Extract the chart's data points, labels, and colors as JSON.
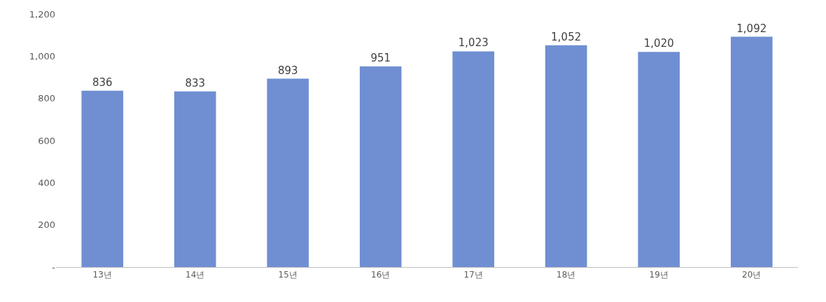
{
  "chart_data": {
    "type": "bar",
    "categories": [
      "13년",
      "14년",
      "15년",
      "16년",
      "17년",
      "18년",
      "19년",
      "20년"
    ],
    "values": [
      836,
      833,
      893,
      951,
      1023,
      1052,
      1020,
      1092
    ],
    "value_labels": [
      "836",
      "833",
      "893",
      "951",
      "1,023",
      "1,052",
      "1,020",
      "1,092"
    ],
    "color": "#6f8fd2",
    "ylim": [
      0,
      1200
    ],
    "yticks": [
      {
        "value": 0,
        "label": "-"
      },
      {
        "value": 200,
        "label": "200"
      },
      {
        "value": 400,
        "label": "400"
      },
      {
        "value": 600,
        "label": "600"
      },
      {
        "value": 800,
        "label": "800"
      },
      {
        "value": 1000,
        "label": "1,000"
      },
      {
        "value": 1200,
        "label": "1,200"
      }
    ],
    "legend": false
  }
}
